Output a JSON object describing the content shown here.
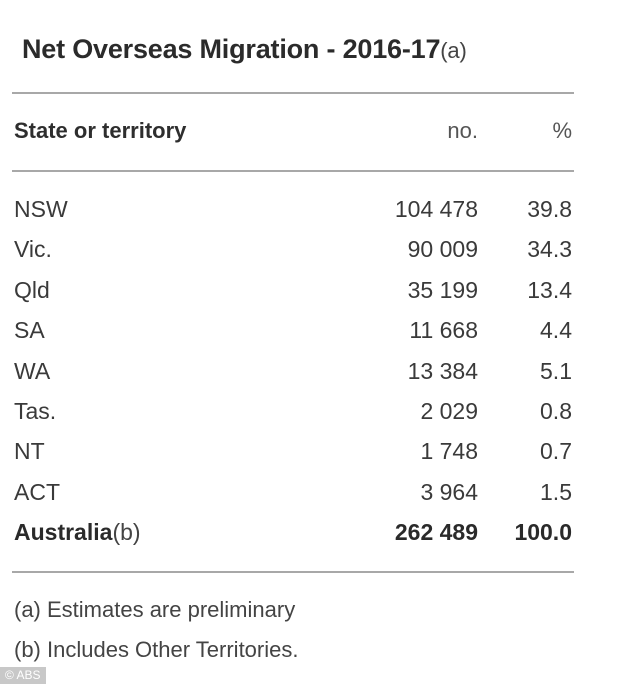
{
  "title": {
    "text": "Net Overseas Migration - 2016-17",
    "note": "(a)"
  },
  "table": {
    "headers": {
      "state": "State or territory",
      "no": "no.",
      "pct": "%"
    },
    "rows": [
      {
        "name": "NSW",
        "no": "104 478",
        "pct": "39.8"
      },
      {
        "name": "Vic.",
        "no": "90 009",
        "pct": "34.3"
      },
      {
        "name": "Qld",
        "no": "35 199",
        "pct": "13.4"
      },
      {
        "name": "SA",
        "no": "11 668",
        "pct": "4.4"
      },
      {
        "name": "WA",
        "no": "13 384",
        "pct": "5.1"
      },
      {
        "name": "Tas.",
        "no": "2 029",
        "pct": "0.8"
      },
      {
        "name": "NT",
        "no": "1 748",
        "pct": "0.7"
      },
      {
        "name": "ACT",
        "no": "3 964",
        "pct": "1.5"
      }
    ],
    "total": {
      "name": "Australia",
      "note": "(b)",
      "no": "262 489",
      "pct": "100.0"
    }
  },
  "footnotes": [
    "(a) Estimates are preliminary",
    "(b) Includes Other Territories."
  ],
  "credit": "© ABS",
  "colors": {
    "rule": "#a8a8a8",
    "text": "#333333",
    "credit_bg": "#c8c8c8"
  }
}
